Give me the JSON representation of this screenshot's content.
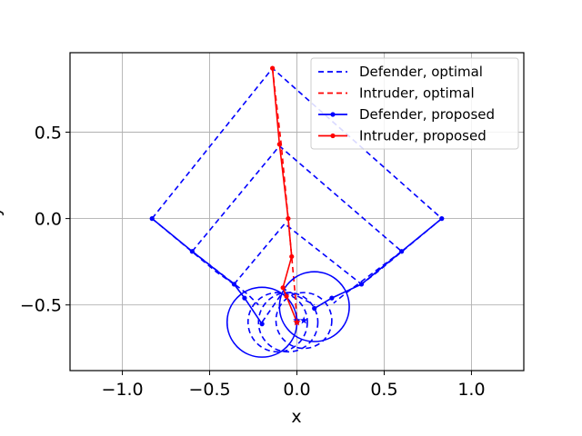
{
  "chart_data": {
    "type": "line",
    "title": "",
    "xlabel": "x",
    "ylabel": "y",
    "xlim": [
      -1.3,
      1.3
    ],
    "ylim": [
      -0.88,
      0.96
    ],
    "xticks": [
      -1.0,
      -0.5,
      0.0,
      0.5,
      1.0
    ],
    "xtick_labels": [
      "−1.0",
      "−0.5",
      "0.0",
      "0.5",
      "1.0"
    ],
    "yticks": [
      -0.5,
      0.0,
      0.5
    ],
    "ytick_labels": [
      "−0.5",
      "0.0",
      "0.5"
    ],
    "grid": true,
    "legend_position": "top-right",
    "colors": {
      "defender": "#0000ff",
      "intruder": "#ff0000",
      "grid": "#b0b0b0"
    },
    "series": [
      {
        "name": "Defender, optimal",
        "style": "dashed",
        "color": "#0000ff",
        "paths": [
          [
            [
              -0.83,
              0.0
            ],
            [
              -0.14,
              0.87
            ],
            [
              0.83,
              0.0
            ]
          ],
          [
            [
              -0.83,
              0.0
            ],
            [
              -0.46,
              -0.31
            ],
            [
              -0.36,
              -0.38
            ]
          ],
          [
            [
              -0.6,
              -0.19
            ],
            [
              -0.1,
              0.42
            ],
            [
              0.6,
              -0.19
            ]
          ],
          [
            [
              0.83,
              0.0
            ],
            [
              0.46,
              -0.31
            ],
            [
              0.37,
              -0.38
            ]
          ],
          [
            [
              -0.36,
              -0.38
            ],
            [
              -0.07,
              -0.03
            ],
            [
              0.37,
              -0.38
            ]
          ],
          [
            [
              -0.6,
              -0.19
            ],
            [
              -0.28,
              -0.44
            ],
            [
              -0.22,
              -0.5
            ]
          ],
          [
            [
              0.6,
              -0.19
            ],
            [
              0.27,
              -0.44
            ],
            [
              0.21,
              -0.49
            ]
          ],
          [
            [
              -0.2,
              -0.6
            ],
            [
              -0.07,
              -0.41
            ],
            [
              0.1,
              -0.5
            ]
          ]
        ],
        "circles": [
          {
            "center": [
              -0.11,
              -0.6
            ],
            "radius": 0.17
          },
          {
            "center": [
              -0.05,
              -0.6
            ],
            "radius": 0.17
          },
          {
            "center": [
              0.04,
              -0.59
            ],
            "radius": 0.16
          }
        ]
      },
      {
        "name": "Intruder, optimal",
        "style": "dashed",
        "color": "#ff0000",
        "paths": [
          [
            [
              -0.14,
              0.87
            ],
            [
              -0.09,
              0.43
            ],
            [
              -0.05,
              0.0
            ],
            [
              -0.01,
              -0.44
            ],
            [
              0.0,
              -0.6
            ]
          ]
        ]
      },
      {
        "name": "Defender, proposed",
        "style": "solid",
        "marker": "dot",
        "color": "#0000ff",
        "paths": [
          [
            [
              -0.83,
              0.0
            ],
            [
              -0.6,
              -0.19
            ],
            [
              -0.36,
              -0.38
            ],
            [
              -0.3,
              -0.46
            ],
            [
              -0.2,
              -0.61
            ]
          ],
          [
            [
              0.83,
              0.0
            ],
            [
              0.6,
              -0.19
            ],
            [
              0.37,
              -0.38
            ],
            [
              0.2,
              -0.46
            ],
            [
              0.1,
              -0.52
            ]
          ]
        ],
        "circles": [
          {
            "center": [
              -0.2,
              -0.6
            ],
            "radius": 0.2
          },
          {
            "center": [
              0.1,
              -0.51
            ],
            "radius": 0.2
          }
        ]
      },
      {
        "name": "Intruder, proposed",
        "style": "solid",
        "marker": "dot",
        "color": "#ff0000",
        "paths": [
          [
            [
              -0.14,
              0.87
            ],
            [
              -0.1,
              0.43
            ],
            [
              -0.05,
              0.0
            ],
            [
              -0.03,
              -0.22
            ],
            [
              -0.08,
              -0.4
            ],
            [
              -0.06,
              -0.45
            ],
            [
              0.0,
              -0.6
            ]
          ]
        ]
      }
    ],
    "stars": [
      {
        "position": [
          0.0,
          -0.59
        ],
        "color": "#0000ff"
      },
      {
        "position": [
          0.04,
          -0.59
        ],
        "color": "#0000ff"
      },
      {
        "position": [
          0.0,
          -0.6
        ],
        "color": "#ff0000"
      }
    ]
  }
}
